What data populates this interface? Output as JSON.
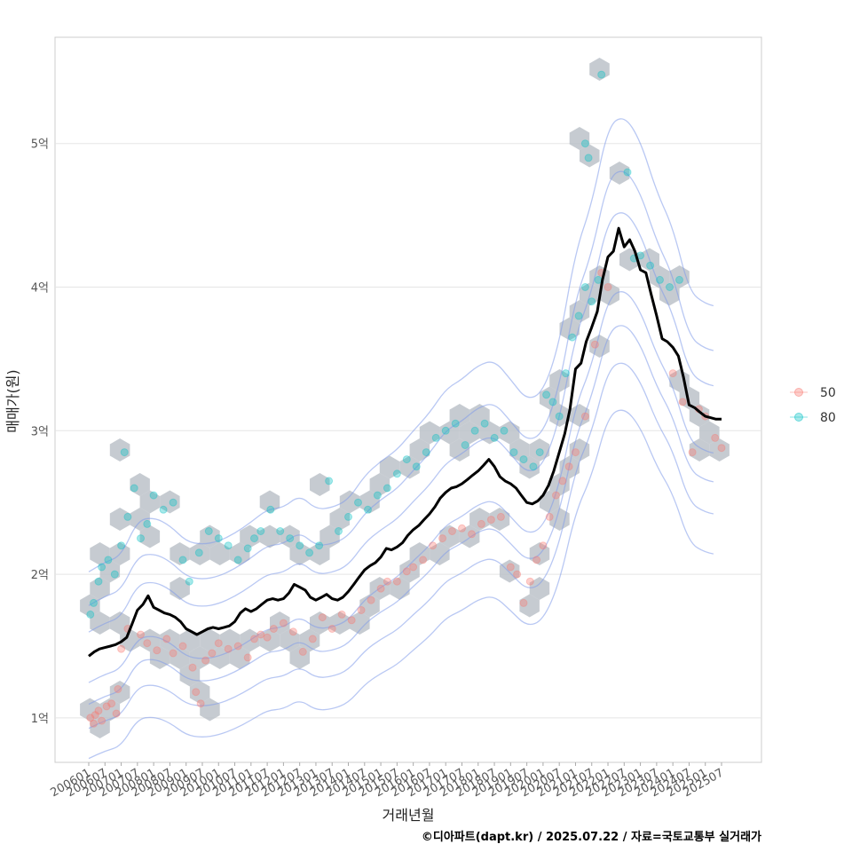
{
  "chart_data": {
    "type": "scatter",
    "title": "",
    "xlabel": "거래년월",
    "ylabel": "매매가(원)",
    "caption": "©디아파트(dapt.kr) / 2025.07.22 / 자료=국토교통부 실거래가",
    "x_range": [
      "2006.01",
      "2025.07"
    ],
    "x_ticks": [
      "200601",
      "200607",
      "200701",
      "200707",
      "200801",
      "200807",
      "200901",
      "200907",
      "201001",
      "201007",
      "201101",
      "201107",
      "201201",
      "201207",
      "201301",
      "201307",
      "201401",
      "201407",
      "201501",
      "201507",
      "201601",
      "201607",
      "201701",
      "201707",
      "201801",
      "201807",
      "201901",
      "201907",
      "202001",
      "202007",
      "202101",
      "202107",
      "202201",
      "202207",
      "202301",
      "202307",
      "202401",
      "202407",
      "202501",
      "202507"
    ],
    "y_ticks": [
      {
        "value": 1,
        "label": "1억"
      },
      {
        "value": 2,
        "label": "2억"
      },
      {
        "value": 3,
        "label": "3억"
      },
      {
        "value": 4,
        "label": "4억"
      },
      {
        "value": 5,
        "label": "5억"
      }
    ],
    "ylim": [
      0.69,
      5.74
    ],
    "legend": {
      "position": "right",
      "items": [
        {
          "label": "50",
          "color": "#F8766D"
        },
        {
          "label": "80",
          "color": "#00BFC4"
        }
      ]
    },
    "series": [
      {
        "name": "moving-average",
        "color": "#000000",
        "points": [
          [
            2006.0,
            1.43
          ],
          [
            2006.17,
            1.46
          ],
          [
            2006.33,
            1.48
          ],
          [
            2006.5,
            1.49
          ],
          [
            2006.67,
            1.5
          ],
          [
            2006.83,
            1.51
          ],
          [
            2007.0,
            1.53
          ],
          [
            2007.17,
            1.56
          ],
          [
            2007.33,
            1.65
          ],
          [
            2007.5,
            1.75
          ],
          [
            2007.67,
            1.79
          ],
          [
            2007.83,
            1.85
          ],
          [
            2008.0,
            1.77
          ],
          [
            2008.17,
            1.75
          ],
          [
            2008.33,
            1.73
          ],
          [
            2008.5,
            1.72
          ],
          [
            2008.67,
            1.7
          ],
          [
            2008.83,
            1.67
          ],
          [
            2009.0,
            1.62
          ],
          [
            2009.17,
            1.6
          ],
          [
            2009.33,
            1.58
          ],
          [
            2009.5,
            1.6
          ],
          [
            2009.67,
            1.62
          ],
          [
            2009.83,
            1.63
          ],
          [
            2010.0,
            1.62
          ],
          [
            2010.17,
            1.63
          ],
          [
            2010.33,
            1.64
          ],
          [
            2010.5,
            1.67
          ],
          [
            2010.67,
            1.73
          ],
          [
            2010.83,
            1.76
          ],
          [
            2011.0,
            1.74
          ],
          [
            2011.17,
            1.76
          ],
          [
            2011.33,
            1.79
          ],
          [
            2011.5,
            1.82
          ],
          [
            2011.67,
            1.83
          ],
          [
            2011.83,
            1.82
          ],
          [
            2012.0,
            1.83
          ],
          [
            2012.17,
            1.87
          ],
          [
            2012.33,
            1.93
          ],
          [
            2012.5,
            1.91
          ],
          [
            2012.67,
            1.89
          ],
          [
            2012.83,
            1.84
          ],
          [
            2013.0,
            1.82
          ],
          [
            2013.17,
            1.84
          ],
          [
            2013.33,
            1.86
          ],
          [
            2013.5,
            1.83
          ],
          [
            2013.67,
            1.82
          ],
          [
            2013.83,
            1.84
          ],
          [
            2014.0,
            1.88
          ],
          [
            2014.17,
            1.93
          ],
          [
            2014.33,
            1.98
          ],
          [
            2014.5,
            2.03
          ],
          [
            2014.67,
            2.06
          ],
          [
            2014.83,
            2.08
          ],
          [
            2015.0,
            2.12
          ],
          [
            2015.17,
            2.18
          ],
          [
            2015.33,
            2.17
          ],
          [
            2015.5,
            2.19
          ],
          [
            2015.67,
            2.22
          ],
          [
            2015.83,
            2.27
          ],
          [
            2016.0,
            2.31
          ],
          [
            2016.17,
            2.34
          ],
          [
            2016.33,
            2.38
          ],
          [
            2016.5,
            2.42
          ],
          [
            2016.67,
            2.47
          ],
          [
            2016.83,
            2.53
          ],
          [
            2017.0,
            2.57
          ],
          [
            2017.17,
            2.6
          ],
          [
            2017.33,
            2.61
          ],
          [
            2017.5,
            2.63
          ],
          [
            2017.67,
            2.66
          ],
          [
            2017.83,
            2.69
          ],
          [
            2018.0,
            2.72
          ],
          [
            2018.17,
            2.76
          ],
          [
            2018.33,
            2.8
          ],
          [
            2018.5,
            2.75
          ],
          [
            2018.67,
            2.68
          ],
          [
            2018.83,
            2.65
          ],
          [
            2019.0,
            2.63
          ],
          [
            2019.17,
            2.6
          ],
          [
            2019.33,
            2.55
          ],
          [
            2019.5,
            2.5
          ],
          [
            2019.67,
            2.49
          ],
          [
            2019.83,
            2.51
          ],
          [
            2020.0,
            2.55
          ],
          [
            2020.17,
            2.62
          ],
          [
            2020.33,
            2.72
          ],
          [
            2020.5,
            2.85
          ],
          [
            2020.67,
            2.98
          ],
          [
            2020.83,
            3.15
          ],
          [
            2021.0,
            3.43
          ],
          [
            2021.17,
            3.47
          ],
          [
            2021.33,
            3.62
          ],
          [
            2021.5,
            3.72
          ],
          [
            2021.67,
            3.83
          ],
          [
            2021.83,
            4.05
          ],
          [
            2022.0,
            4.21
          ],
          [
            2022.17,
            4.25
          ],
          [
            2022.33,
            4.41
          ],
          [
            2022.5,
            4.28
          ],
          [
            2022.67,
            4.33
          ],
          [
            2022.83,
            4.25
          ],
          [
            2023.0,
            4.12
          ],
          [
            2023.17,
            4.1
          ],
          [
            2023.33,
            3.95
          ],
          [
            2023.5,
            3.8
          ],
          [
            2023.67,
            3.64
          ],
          [
            2023.83,
            3.62
          ],
          [
            2024.0,
            3.58
          ],
          [
            2024.17,
            3.52
          ],
          [
            2024.33,
            3.37
          ],
          [
            2024.5,
            3.18
          ],
          [
            2024.67,
            3.16
          ],
          [
            2024.83,
            3.13
          ],
          [
            2025.0,
            3.1
          ],
          [
            2025.17,
            3.09
          ],
          [
            2025.33,
            3.08
          ],
          [
            2025.5,
            3.08
          ]
        ]
      },
      {
        "name": "50",
        "color": "#F8766D",
        "points": [
          [
            2006.05,
            1.0
          ],
          [
            2006.15,
            0.96
          ],
          [
            2006.2,
            1.02
          ],
          [
            2006.3,
            1.05
          ],
          [
            2006.4,
            0.98
          ],
          [
            2006.55,
            1.08
          ],
          [
            2006.7,
            1.1
          ],
          [
            2006.85,
            1.03
          ],
          [
            2006.9,
            1.2
          ],
          [
            2007.0,
            1.48
          ],
          [
            2007.2,
            1.62
          ],
          [
            2007.6,
            1.58
          ],
          [
            2007.8,
            1.52
          ],
          [
            2008.1,
            1.47
          ],
          [
            2008.4,
            1.55
          ],
          [
            2008.6,
            1.45
          ],
          [
            2008.9,
            1.5
          ],
          [
            2009.2,
            1.35
          ],
          [
            2009.3,
            1.18
          ],
          [
            2009.45,
            1.1
          ],
          [
            2009.6,
            1.4
          ],
          [
            2009.8,
            1.45
          ],
          [
            2010.0,
            1.52
          ],
          [
            2010.3,
            1.48
          ],
          [
            2010.6,
            1.5
          ],
          [
            2010.9,
            1.42
          ],
          [
            2011.1,
            1.55
          ],
          [
            2011.3,
            1.58
          ],
          [
            2011.5,
            1.56
          ],
          [
            2011.7,
            1.62
          ],
          [
            2012.0,
            1.66
          ],
          [
            2012.3,
            1.6
          ],
          [
            2012.6,
            1.46
          ],
          [
            2012.9,
            1.55
          ],
          [
            2013.2,
            1.7
          ],
          [
            2013.5,
            1.62
          ],
          [
            2013.8,
            1.72
          ],
          [
            2014.1,
            1.68
          ],
          [
            2014.4,
            1.75
          ],
          [
            2014.7,
            1.82
          ],
          [
            2015.0,
            1.9
          ],
          [
            2015.2,
            1.95
          ],
          [
            2015.5,
            1.95
          ],
          [
            2015.8,
            2.02
          ],
          [
            2016.0,
            2.05
          ],
          [
            2016.3,
            2.1
          ],
          [
            2016.6,
            2.2
          ],
          [
            2016.9,
            2.25
          ],
          [
            2017.2,
            2.3
          ],
          [
            2017.5,
            2.32
          ],
          [
            2017.8,
            2.28
          ],
          [
            2018.1,
            2.35
          ],
          [
            2018.4,
            2.38
          ],
          [
            2018.7,
            2.4
          ],
          [
            2019.0,
            2.05
          ],
          [
            2019.2,
            2.0
          ],
          [
            2019.4,
            1.8
          ],
          [
            2019.6,
            1.95
          ],
          [
            2019.8,
            2.1
          ],
          [
            2020.0,
            2.2
          ],
          [
            2020.2,
            2.4
          ],
          [
            2020.4,
            2.55
          ],
          [
            2020.6,
            2.65
          ],
          [
            2020.8,
            2.75
          ],
          [
            2021.0,
            2.85
          ],
          [
            2021.3,
            3.1
          ],
          [
            2021.6,
            3.6
          ],
          [
            2021.8,
            4.1
          ],
          [
            2022.0,
            4.0
          ],
          [
            2024.0,
            3.4
          ],
          [
            2024.3,
            3.2
          ],
          [
            2024.6,
            2.85
          ],
          [
            2024.8,
            3.15
          ],
          [
            2025.0,
            3.1
          ],
          [
            2025.3,
            2.95
          ],
          [
            2025.5,
            2.88
          ]
        ]
      },
      {
        "name": "80",
        "color": "#00BFC4",
        "points": [
          [
            2006.05,
            1.72
          ],
          [
            2006.15,
            1.8
          ],
          [
            2006.3,
            1.95
          ],
          [
            2006.4,
            2.05
          ],
          [
            2006.6,
            2.1
          ],
          [
            2006.8,
            2.0
          ],
          [
            2007.0,
            2.2
          ],
          [
            2007.2,
            2.4
          ],
          [
            2007.1,
            2.85
          ],
          [
            2007.4,
            2.6
          ],
          [
            2007.6,
            2.25
          ],
          [
            2007.8,
            2.35
          ],
          [
            2008.0,
            2.55
          ],
          [
            2008.3,
            2.45
          ],
          [
            2008.6,
            2.5
          ],
          [
            2008.9,
            2.1
          ],
          [
            2009.1,
            1.95
          ],
          [
            2009.4,
            2.15
          ],
          [
            2009.7,
            2.3
          ],
          [
            2010.0,
            2.25
          ],
          [
            2010.3,
            2.2
          ],
          [
            2010.6,
            2.1
          ],
          [
            2010.9,
            2.18
          ],
          [
            2011.1,
            2.25
          ],
          [
            2011.3,
            2.3
          ],
          [
            2011.6,
            2.45
          ],
          [
            2011.9,
            2.3
          ],
          [
            2012.2,
            2.25
          ],
          [
            2012.5,
            2.2
          ],
          [
            2012.8,
            2.15
          ],
          [
            2013.1,
            2.2
          ],
          [
            2013.4,
            2.65
          ],
          [
            2013.7,
            2.3
          ],
          [
            2014.0,
            2.4
          ],
          [
            2014.3,
            2.5
          ],
          [
            2014.6,
            2.45
          ],
          [
            2014.9,
            2.55
          ],
          [
            2015.2,
            2.6
          ],
          [
            2015.5,
            2.7
          ],
          [
            2015.8,
            2.8
          ],
          [
            2016.1,
            2.75
          ],
          [
            2016.4,
            2.85
          ],
          [
            2016.7,
            2.95
          ],
          [
            2017.0,
            3.0
          ],
          [
            2017.3,
            3.05
          ],
          [
            2017.6,
            2.9
          ],
          [
            2017.9,
            3.0
          ],
          [
            2018.2,
            3.05
          ],
          [
            2018.5,
            2.95
          ],
          [
            2018.8,
            3.0
          ],
          [
            2019.1,
            2.85
          ],
          [
            2019.4,
            2.8
          ],
          [
            2019.7,
            2.75
          ],
          [
            2019.9,
            2.85
          ],
          [
            2020.1,
            3.25
          ],
          [
            2020.3,
            3.2
          ],
          [
            2020.5,
            3.1
          ],
          [
            2020.7,
            3.4
          ],
          [
            2020.9,
            3.65
          ],
          [
            2021.1,
            3.8
          ],
          [
            2021.3,
            4.0
          ],
          [
            2021.5,
            3.9
          ],
          [
            2021.7,
            4.05
          ],
          [
            2021.3,
            5.0
          ],
          [
            2021.4,
            4.9
          ],
          [
            2021.8,
            5.48
          ],
          [
            2022.6,
            4.8
          ],
          [
            2022.8,
            4.2
          ],
          [
            2023.0,
            4.22
          ],
          [
            2023.3,
            4.15
          ],
          [
            2023.6,
            4.05
          ],
          [
            2023.9,
            4.0
          ],
          [
            2024.2,
            4.05
          ]
        ]
      }
    ]
  }
}
